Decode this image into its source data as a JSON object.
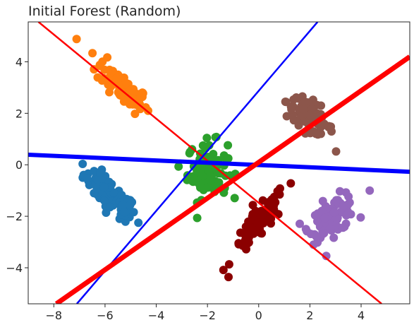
{
  "chart_data": {
    "type": "scatter",
    "title": "Initial Forest (Random)",
    "xlabel": "",
    "ylabel": "",
    "xlim": [
      -9,
      5.9
    ],
    "ylim": [
      -5.4,
      5.55
    ],
    "x_ticks": [
      -8,
      -6,
      -4,
      -2,
      0,
      2,
      4
    ],
    "y_ticks": [
      -4,
      -2,
      0,
      2,
      4
    ],
    "x_tick_labels": [
      "−8",
      "−6",
      "−4",
      "−2",
      "0",
      "2",
      "4"
    ],
    "y_tick_labels": [
      "−4",
      "−2",
      "0",
      "2",
      "4"
    ],
    "grid": false,
    "legend": "none",
    "clusters": [
      {
        "color": "#1f77b4",
        "center": [
          -5.8,
          -1.2
        ],
        "count": 95,
        "spread": [
          0.4,
          0.3
        ],
        "slope": -0.8
      },
      {
        "color": "#ff7f0e",
        "center": [
          -5.3,
          3.0
        ],
        "count": 90,
        "spread": [
          0.4,
          0.3
        ],
        "slope": -0.85
      },
      {
        "color": "#2ca02c",
        "center": [
          -2.0,
          -0.2
        ],
        "count": 95,
        "spread": [
          0.3,
          0.55
        ],
        "slope": 0.0
      },
      {
        "color": "#8c564b",
        "center": [
          2.0,
          1.9
        ],
        "count": 80,
        "spread": [
          0.35,
          0.3
        ],
        "slope": -0.6
      },
      {
        "color": "#8b0000",
        "center": [
          0.0,
          -2.3
        ],
        "count": 95,
        "spread": [
          0.4,
          0.3
        ],
        "slope": 1.1
      },
      {
        "color": "#9467bd",
        "center": [
          2.9,
          -2.0
        ],
        "count": 90,
        "spread": [
          0.35,
          0.35
        ],
        "slope": 0.5
      }
    ],
    "lines": [
      {
        "color": "#ff0000",
        "width": 2.5,
        "x": [
          -8.6,
          4.8
        ],
        "y": [
          5.55,
          -5.4
        ]
      },
      {
        "color": "#0000ff",
        "width": 2.5,
        "x": [
          -7.1,
          2.3
        ],
        "y": [
          -5.4,
          5.55
        ]
      },
      {
        "color": "#0000ff",
        "width": 6,
        "x": [
          -9,
          5.9
        ],
        "y": [
          0.39,
          -0.27
        ]
      },
      {
        "color": "#ff0000",
        "width": 7,
        "x": [
          -7.9,
          5.9
        ],
        "y": [
          -5.4,
          4.2
        ]
      }
    ]
  }
}
